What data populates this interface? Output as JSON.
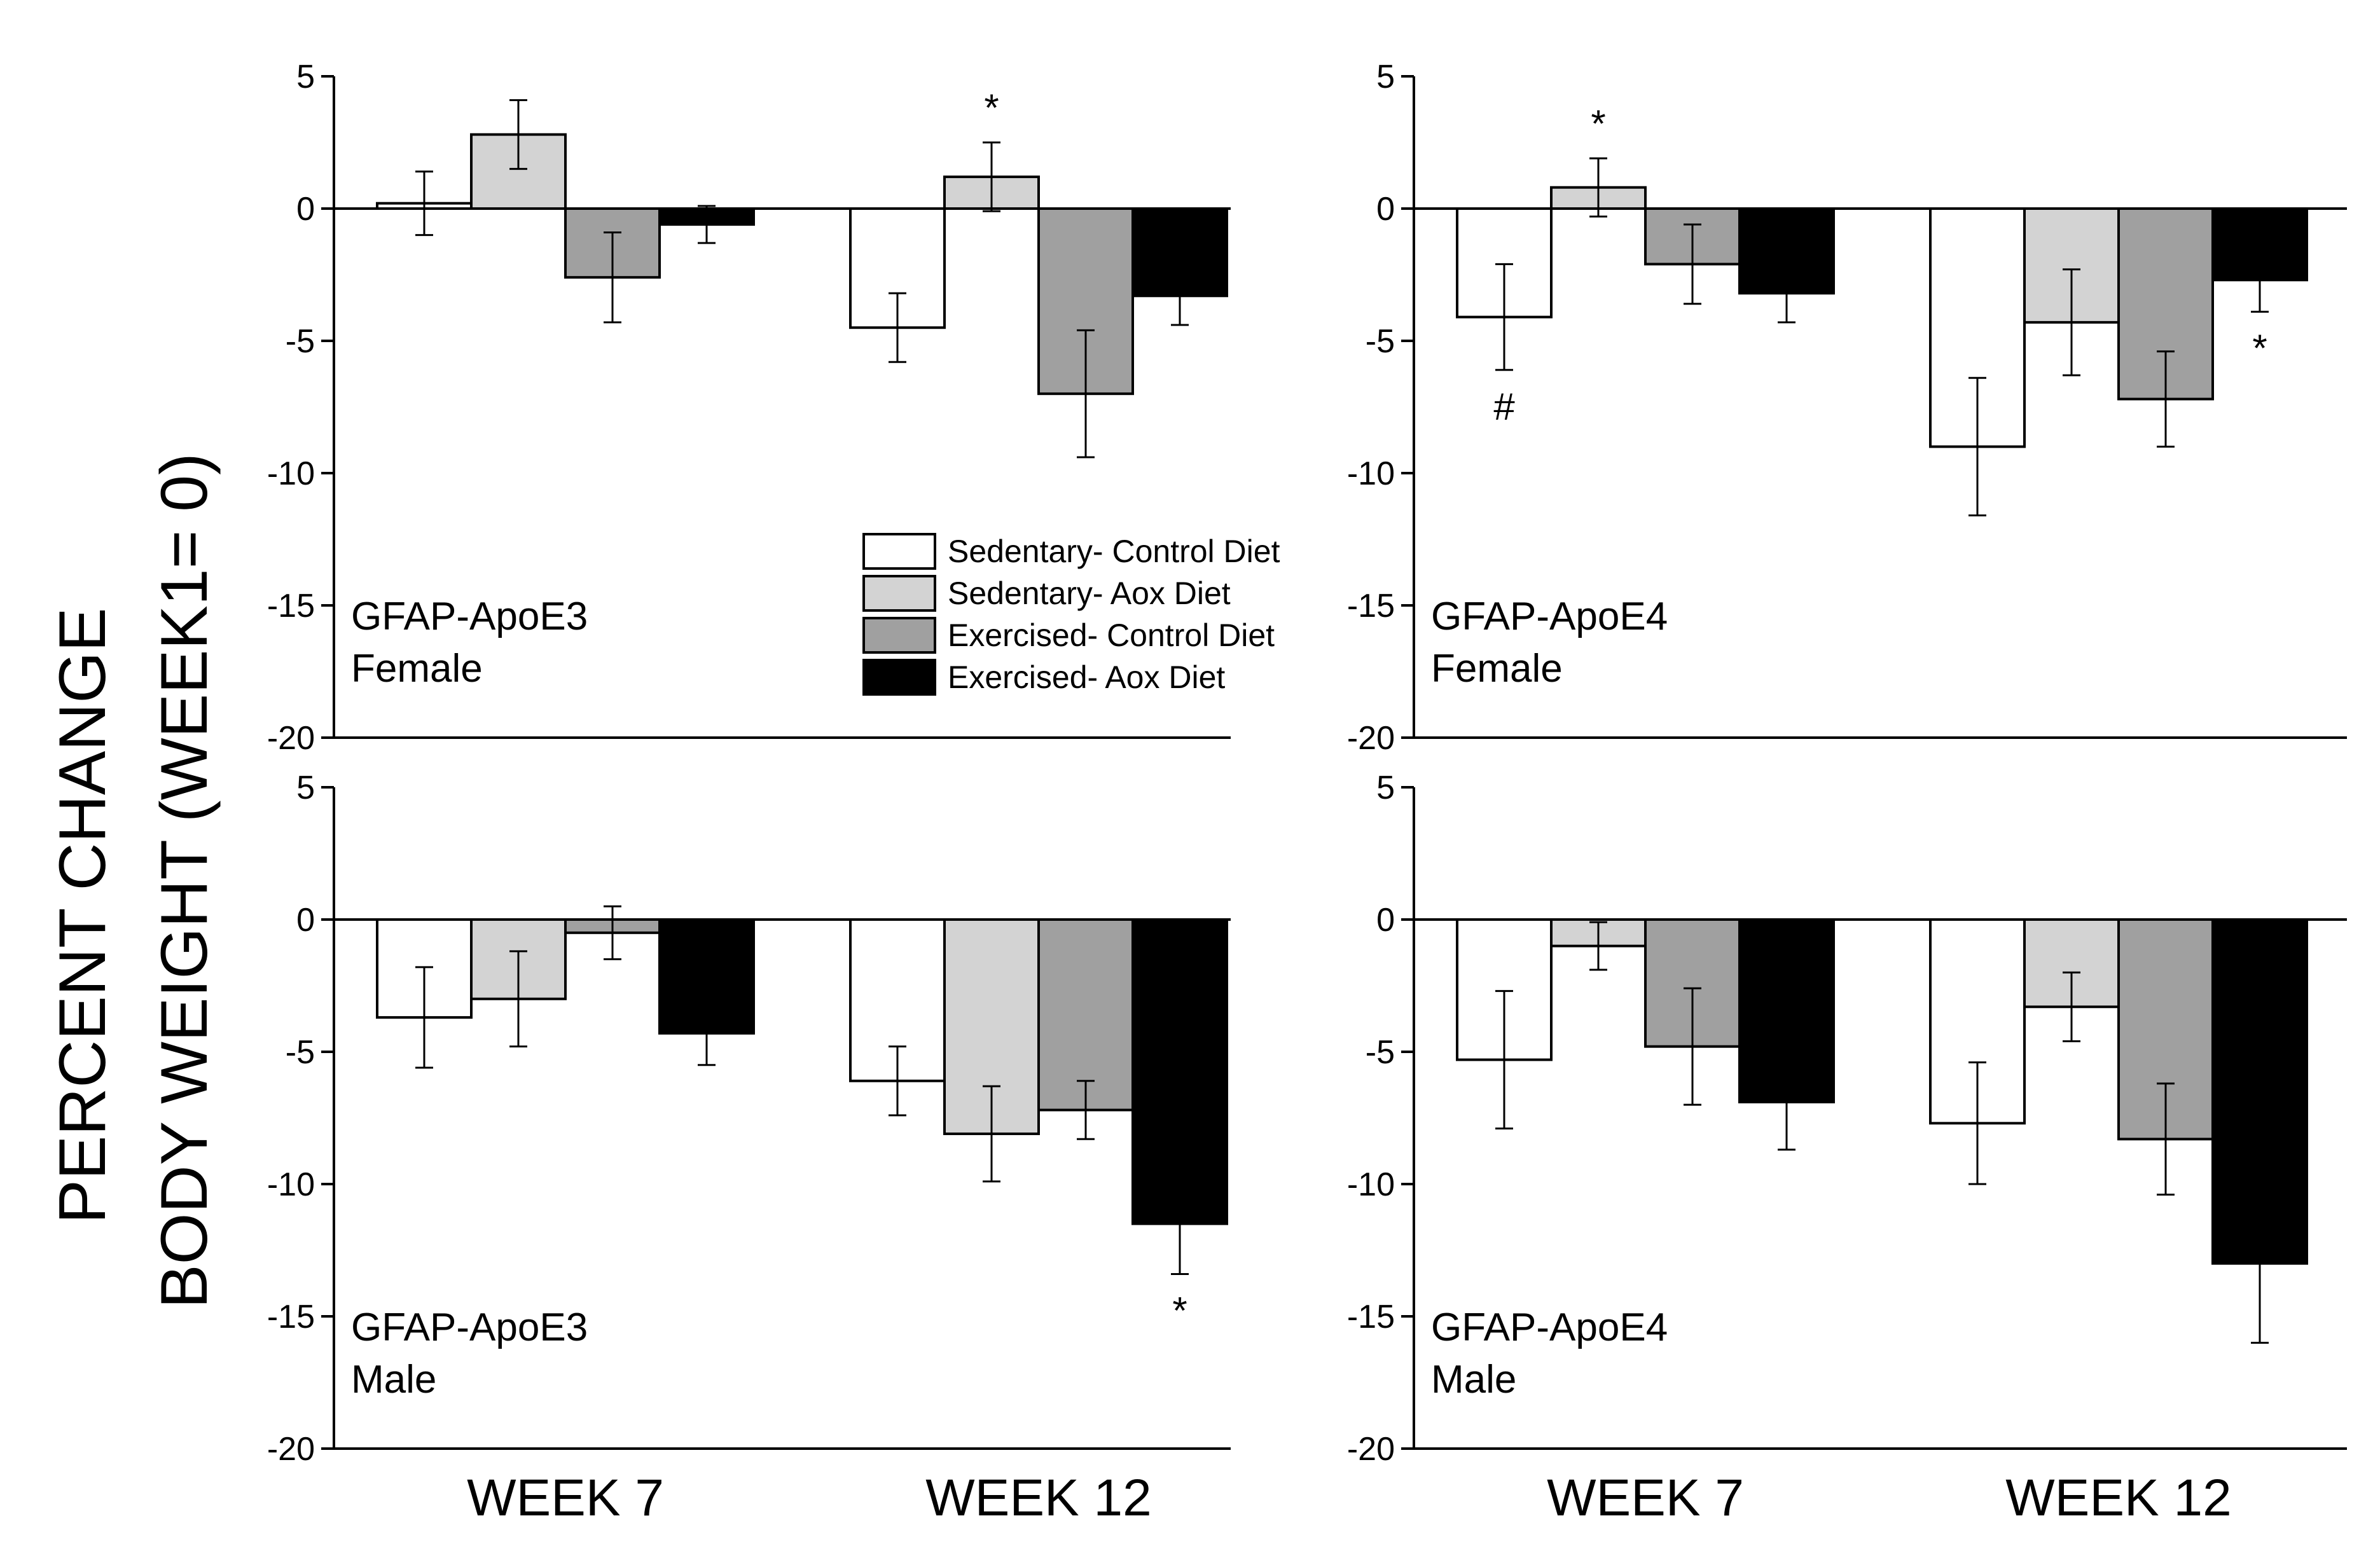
{
  "chart_data": {
    "type": "bar",
    "ylabel_lines": [
      "PERCENT CHANGE",
      "BODY WEIGHT (WEEK1= 0)"
    ],
    "ylim": [
      -20,
      5
    ],
    "yticks": [
      "5",
      "0",
      "-5",
      "-10",
      "-15",
      "-20"
    ],
    "ytick_values": [
      5,
      0,
      -5,
      -10,
      -15,
      -20
    ],
    "categories": [
      "WEEK 7",
      "WEEK 12"
    ],
    "legend": [
      {
        "name": "Sedentary- Control Diet",
        "color": "#ffffff"
      },
      {
        "name": "Sedentary- Aox Diet",
        "color": "#d3d3d3"
      },
      {
        "name": "Exercised- Control Diet",
        "color": "#a0a0a0"
      },
      {
        "name": "Exercised- Aox Diet",
        "color": "#000000"
      }
    ],
    "panels": [
      {
        "label_lines": [
          "GFAP-ApoE3",
          "Female"
        ],
        "series": [
          {
            "name": "Sedentary- Control Diet",
            "values": [
              0.2,
              -4.5
            ],
            "errors": [
              1.2,
              1.3
            ]
          },
          {
            "name": "Sedentary- Aox Diet",
            "values": [
              2.8,
              1.2
            ],
            "errors": [
              1.3,
              1.3
            ]
          },
          {
            "name": "Exercised- Control Diet",
            "values": [
              -2.6,
              -7.0
            ],
            "errors": [
              1.7,
              2.4
            ]
          },
          {
            "name": "Exercised- Aox Diet",
            "values": [
              -0.6,
              -3.3
            ],
            "errors": [
              0.7,
              1.1
            ]
          }
        ],
        "annotations": [
          {
            "category": 1,
            "series": 1,
            "text": "*",
            "position": "above"
          }
        ]
      },
      {
        "label_lines": [
          "GFAP-ApoE4",
          "Female"
        ],
        "series": [
          {
            "name": "Sedentary- Control Diet",
            "values": [
              -4.1,
              -9.0
            ],
            "errors": [
              2.0,
              2.6
            ]
          },
          {
            "name": "Sedentary- Aox Diet",
            "values": [
              0.8,
              -4.3
            ],
            "errors": [
              1.1,
              2.0
            ]
          },
          {
            "name": "Exercised- Control Diet",
            "values": [
              -2.1,
              -7.2
            ],
            "errors": [
              1.5,
              1.8
            ]
          },
          {
            "name": "Exercised- Aox Diet",
            "values": [
              -3.2,
              -2.7
            ],
            "errors": [
              1.1,
              1.2
            ]
          }
        ],
        "annotations": [
          {
            "category": 0,
            "series": 0,
            "text": "#",
            "position": "below"
          },
          {
            "category": 0,
            "series": 1,
            "text": "*",
            "position": "above"
          },
          {
            "category": 1,
            "series": 3,
            "text": "*",
            "position": "below"
          }
        ]
      },
      {
        "label_lines": [
          "GFAP-ApoE3",
          "Male"
        ],
        "series": [
          {
            "name": "Sedentary- Control Diet",
            "values": [
              -3.7,
              -6.1
            ],
            "errors": [
              1.9,
              1.3
            ]
          },
          {
            "name": "Sedentary- Aox Diet",
            "values": [
              -3.0,
              -8.1
            ],
            "errors": [
              1.8,
              1.8
            ]
          },
          {
            "name": "Exercised- Control Diet",
            "values": [
              -0.5,
              -7.2
            ],
            "errors": [
              1.0,
              1.1
            ]
          },
          {
            "name": "Exercised- Aox Diet",
            "values": [
              -4.3,
              -11.5
            ],
            "errors": [
              1.2,
              1.9
            ]
          }
        ],
        "annotations": [
          {
            "category": 1,
            "series": 3,
            "text": "*",
            "position": "below"
          }
        ]
      },
      {
        "label_lines": [
          "GFAP-ApoE4",
          "Male"
        ],
        "series": [
          {
            "name": "Sedentary- Control Diet",
            "values": [
              -5.3,
              -7.7
            ],
            "errors": [
              2.6,
              2.3
            ]
          },
          {
            "name": "Sedentary- Aox Diet",
            "values": [
              -1.0,
              -3.3
            ],
            "errors": [
              0.9,
              1.3
            ]
          },
          {
            "name": "Exercised- Control Diet",
            "values": [
              -4.8,
              -8.3
            ],
            "errors": [
              2.2,
              2.1
            ]
          },
          {
            "name": "Exercised- Aox Diet",
            "values": [
              -6.9,
              -13.0
            ],
            "errors": [
              1.8,
              3.0
            ]
          }
        ],
        "annotations": []
      }
    ]
  }
}
